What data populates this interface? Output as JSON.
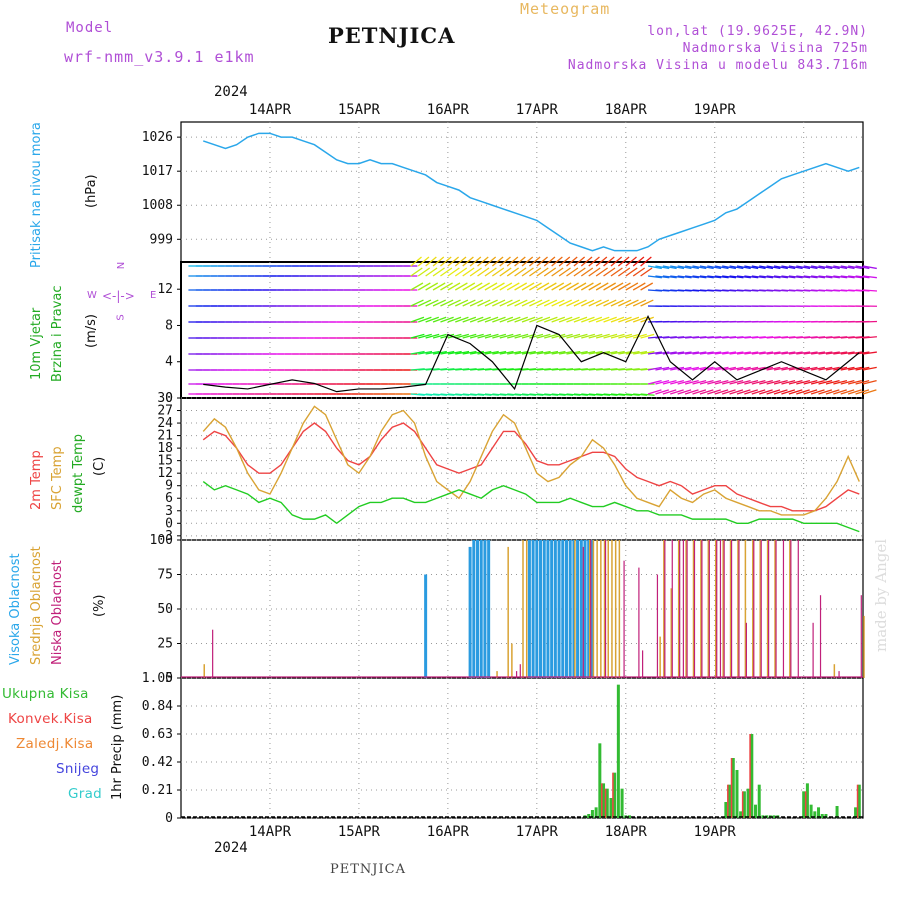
{
  "header": {
    "model_label": "Model",
    "model_name": "wrf-nmm_v3.9.1 e1km",
    "title": "PETNJICA",
    "meteogram_label": "Meteogram",
    "lonlat": "lon,lat (19.9625E, 42.9N)",
    "altitude": "Nadmorska Visina 725m",
    "model_altitude": "Nadmorska Visina u modelu 843.716m",
    "year_top": "2024",
    "year_bottom": "2024",
    "footer": "PETNJICA",
    "watermark": "made by Angel"
  },
  "colors": {
    "pressure": "#2aa7ea",
    "temp2m": "#ee4444",
    "sfc": "#d9a334",
    "dewpt": "#22cc22",
    "high_cloud": "#2a9be0",
    "mid_cloud": "#d9a334",
    "low_cloud": "#c0207a",
    "total_precip": "#33bb33",
    "conv_precip": "#ee4444",
    "grid_precip": "#ee8833",
    "snow": "#4444dd",
    "grad": "#33cccc",
    "violet": "#b04fd6",
    "grid": "#999999"
  },
  "wind_panel": {
    "compass": {
      "n": "N",
      "e": "E",
      "w": "W",
      "s": "S"
    }
  },
  "chart_data": [
    {
      "type": "line",
      "panel": "pressure",
      "ylabel": "Pritisak na nivou mora",
      "unit": "(hPa)",
      "yticks": [
        999,
        1008,
        1017,
        1026
      ],
      "ylim": [
        993,
        1030
      ],
      "x_days": [
        "14APR",
        "15APR",
        "16APR",
        "17APR",
        "18APR",
        "19APR"
      ],
      "x": [
        0,
        3,
        6,
        9,
        12,
        15,
        18,
        21,
        24,
        27,
        30,
        33,
        36,
        39,
        42,
        45,
        48,
        51,
        54,
        57,
        60,
        63,
        66,
        69,
        72,
        75,
        78,
        81,
        84,
        87,
        90,
        93,
        96,
        99,
        102,
        105,
        108,
        111,
        114,
        117,
        120,
        123,
        126,
        129,
        132,
        135,
        138,
        141,
        144,
        147,
        150,
        153,
        156,
        159,
        162,
        165,
        168,
        171,
        174,
        177
      ],
      "series": [
        {
          "name": "Pritisak na nivou mora",
          "values": [
            1025,
            1024,
            1023,
            1024,
            1026,
            1027,
            1027,
            1026,
            1026,
            1025,
            1024,
            1022,
            1020,
            1019,
            1019,
            1020,
            1019,
            1019,
            1018,
            1017,
            1016,
            1014,
            1013,
            1012,
            1010,
            1009,
            1008,
            1007,
            1006,
            1005,
            1004,
            1002,
            1000,
            998,
            997,
            996,
            997,
            996,
            996,
            996,
            997,
            999,
            1000,
            1001,
            1002,
            1003,
            1004,
            1006,
            1007,
            1009,
            1011,
            1013,
            1015,
            1016,
            1017,
            1018,
            1019,
            1018,
            1017,
            1018
          ]
        }
      ]
    },
    {
      "type": "line",
      "panel": "wind",
      "ylabel": "10m Vjetar",
      "ylabel2": "Brzina i Pravac",
      "unit": "(m/s)",
      "yticks": [
        0,
        4,
        8,
        12
      ],
      "ylim": [
        0,
        15
      ],
      "x": [
        0,
        6,
        12,
        18,
        24,
        30,
        36,
        42,
        48,
        54,
        60,
        66,
        72,
        78,
        84,
        90,
        96,
        102,
        108,
        114,
        120,
        126,
        132,
        138,
        144,
        150,
        156,
        162,
        168,
        174,
        177
      ],
      "series": [
        {
          "name": "speed",
          "values": [
            1.5,
            1.2,
            1.0,
            1.5,
            2.0,
            1.6,
            0.7,
            1.0,
            1.0,
            1.2,
            1.5,
            7.0,
            6.0,
            4.0,
            1.0,
            8.0,
            7.0,
            4.0,
            5.0,
            4.0,
            9.0,
            4.0,
            2.0,
            4.0,
            2.0,
            3.0,
            4.0,
            3.0,
            2.0,
            4.0,
            5.0
          ]
        }
      ]
    },
    {
      "type": "line",
      "panel": "temperature",
      "ylabel": "2m Temp",
      "ylabel2": "SFC Temp",
      "ylabel3": "dewpt Temp",
      "unit": "(C)",
      "yticks": [
        -3,
        0,
        3,
        6,
        9,
        12,
        15,
        18,
        21,
        24,
        27,
        30
      ],
      "ylim": [
        -4,
        30
      ],
      "x": [
        0,
        3,
        6,
        9,
        12,
        15,
        18,
        21,
        24,
        27,
        30,
        33,
        36,
        39,
        42,
        45,
        48,
        51,
        54,
        57,
        60,
        63,
        66,
        69,
        72,
        75,
        78,
        81,
        84,
        87,
        90,
        93,
        96,
        99,
        102,
        105,
        108,
        111,
        114,
        117,
        120,
        123,
        126,
        129,
        132,
        135,
        138,
        141,
        144,
        147,
        150,
        153,
        156,
        159,
        162,
        165,
        168,
        171,
        174,
        177
      ],
      "series": [
        {
          "name": "2m Temp",
          "values": [
            20,
            22,
            21,
            18,
            14,
            12,
            12,
            14,
            18,
            22,
            24,
            22,
            18,
            15,
            14,
            16,
            20,
            23,
            24,
            22,
            18,
            14,
            13,
            12,
            13,
            14,
            18,
            22,
            22,
            19,
            15,
            14,
            14,
            15,
            16,
            17,
            17,
            16,
            13,
            11,
            10,
            9,
            10,
            9,
            7,
            8,
            9,
            9,
            7,
            6,
            5,
            4,
            4,
            3,
            3,
            3,
            4,
            6,
            8,
            7
          ]
        },
        {
          "name": "SFC Temp",
          "values": [
            22,
            25,
            23,
            18,
            12,
            8,
            7,
            12,
            18,
            24,
            28,
            26,
            20,
            14,
            12,
            16,
            22,
            26,
            27,
            24,
            16,
            10,
            8,
            6,
            10,
            16,
            22,
            26,
            24,
            18,
            12,
            10,
            11,
            14,
            16,
            20,
            18,
            14,
            9,
            6,
            5,
            4,
            8,
            6,
            5,
            7,
            8,
            6,
            5,
            4,
            3,
            3,
            2,
            2,
            2,
            3,
            6,
            10,
            16,
            10
          ]
        },
        {
          "name": "dewpt Temp",
          "values": [
            10,
            8,
            9,
            8,
            7,
            5,
            6,
            5,
            2,
            1,
            1,
            2,
            0,
            2,
            4,
            5,
            5,
            6,
            6,
            5,
            5,
            6,
            7,
            8,
            7,
            6,
            8,
            9,
            8,
            7,
            5,
            5,
            5,
            6,
            5,
            4,
            4,
            5,
            4,
            3,
            3,
            2,
            2,
            2,
            1,
            1,
            1,
            1,
            0,
            0,
            1,
            1,
            1,
            1,
            0,
            0,
            0,
            0,
            -1,
            -2
          ]
        }
      ]
    },
    {
      "type": "bar",
      "panel": "clouds",
      "ylabel": "Visoka Oblacnost",
      "ylabel2": "Srednja Oblacnost",
      "ylabel3": "Niska Oblacnost",
      "unit": "(%)",
      "yticks": [
        0,
        25,
        50,
        75,
        100
      ],
      "ylim": [
        0,
        100
      ],
      "series": [
        {
          "name": "Visoka Oblacnost",
          "x": [
            60,
            72,
            73,
            74,
            75,
            76,
            77,
            88,
            89,
            90,
            91,
            92,
            93,
            94,
            95,
            96,
            97,
            98,
            99,
            100,
            101,
            102,
            103,
            104,
            105
          ],
          "values": [
            75,
            95,
            100,
            100,
            100,
            100,
            100,
            100,
            100,
            100,
            100,
            100,
            100,
            100,
            100,
            100,
            100,
            100,
            100,
            100,
            100,
            100,
            100,
            100,
            100
          ]
        },
        {
          "name": "Srednja Oblacnost",
          "x": [
            0,
            79,
            82,
            83,
            86,
            87,
            100,
            104,
            105,
            106,
            107,
            108,
            109,
            110,
            111,
            112,
            123,
            124,
            126,
            128,
            130,
            132,
            134,
            136,
            138,
            140,
            142,
            144,
            146,
            148,
            150,
            152,
            154,
            158,
            170,
            178
          ],
          "values": [
            10,
            5,
            95,
            25,
            100,
            100,
            100,
            100,
            100,
            100,
            100,
            100,
            100,
            100,
            100,
            100,
            30,
            100,
            65,
            100,
            100,
            100,
            100,
            100,
            100,
            100,
            100,
            100,
            100,
            100,
            100,
            100,
            100,
            100,
            10,
            45
          ]
        },
        {
          "name": "Niska Oblacnost",
          "x": [
            2,
            84,
            85,
            102,
            104,
            108,
            113,
            117,
            118,
            122,
            124,
            126,
            128,
            129,
            130,
            132,
            134,
            136,
            138,
            139,
            140,
            142,
            144,
            146,
            148,
            150,
            152,
            154,
            156,
            158,
            160,
            164,
            166,
            171,
            177
          ],
          "values": [
            35,
            5,
            10,
            95,
            100,
            100,
            85,
            80,
            20,
            75,
            100,
            100,
            100,
            100,
            100,
            100,
            100,
            100,
            100,
            100,
            100,
            100,
            100,
            40,
            100,
            100,
            100,
            100,
            100,
            100,
            100,
            40,
            60,
            5,
            60
          ]
        }
      ]
    },
    {
      "type": "bar",
      "panel": "precip",
      "ylabel": "1hr Precip (mm)",
      "yticks": [
        0,
        0.21,
        0.42,
        0.63,
        0.84,
        1.05
      ],
      "ylim": [
        0,
        1.05
      ],
      "legend": [
        "Ukupna Kisa",
        "Konvek.Kisa",
        "Zaledj.Kisa",
        "Snijeg",
        "Grad"
      ],
      "x": [
        103,
        104,
        105,
        106,
        107,
        108,
        109,
        110,
        111,
        112,
        113,
        114,
        115,
        141,
        142,
        143,
        144,
        145,
        146,
        147,
        148,
        149,
        150,
        151,
        152,
        153,
        154,
        155,
        162,
        163,
        164,
        165,
        166,
        167,
        168,
        171,
        176,
        177
      ],
      "series": [
        {
          "name": "Ukupna Kisa",
          "values": [
            0.02,
            0.03,
            0.06,
            0.08,
            0.56,
            0.26,
            0.22,
            0.15,
            0.34,
            1.0,
            0.22,
            0.02,
            0.02,
            0.12,
            0.25,
            0.45,
            0.36,
            0.05,
            0.2,
            0.22,
            0.63,
            0.1,
            0.25,
            0.02,
            0.02,
            0.02,
            0.02,
            0.02,
            0.2,
            0.26,
            0.1,
            0.05,
            0.08,
            0.03,
            0.03,
            0.09,
            0.08,
            0.25
          ]
        },
        {
          "name": "Konvek.Kisa",
          "values": [
            0,
            0,
            0,
            0,
            0,
            0.26,
            0.22,
            0,
            0.34,
            0,
            0,
            0,
            0,
            0,
            0.25,
            0.45,
            0,
            0,
            0.2,
            0,
            0.63,
            0,
            0,
            0,
            0,
            0,
            0,
            0,
            0,
            0.2,
            0,
            0,
            0,
            0,
            0,
            0,
            0,
            0.25
          ]
        }
      ]
    }
  ]
}
